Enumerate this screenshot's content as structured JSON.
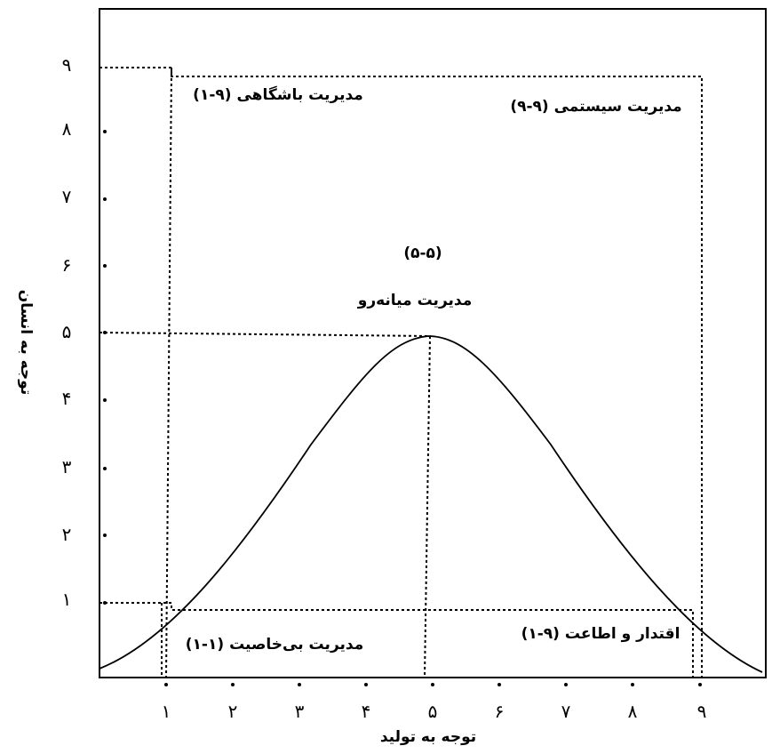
{
  "axes": {
    "x_title": "توجه به تولید",
    "y_title": "توجه به انسان",
    "x_ticks": [
      "۱",
      "۲",
      "۳",
      "۴",
      "۵",
      "۶",
      "۷",
      "۸",
      "۹"
    ],
    "y_ticks": [
      "۱",
      "۲",
      "۳",
      "۴",
      "۵",
      "۶",
      "۷",
      "۸",
      "۹"
    ]
  },
  "styles": [
    {
      "id": "country-club",
      "label": "مدیریت باشگاهی (۹-۱)"
    },
    {
      "id": "team",
      "label": "(۹-۹) مدیریت سیستمی"
    },
    {
      "id": "middle-code",
      "label": "(۵-۵)"
    },
    {
      "id": "middle-name",
      "label": "مدیریت میانه‌رو"
    },
    {
      "id": "impoverished",
      "label": "مدیریت بی‌خاصیت (۱-۱)"
    },
    {
      "id": "authority",
      "label": "(۱-۹) اقتدار و اطاعت"
    }
  ]
}
